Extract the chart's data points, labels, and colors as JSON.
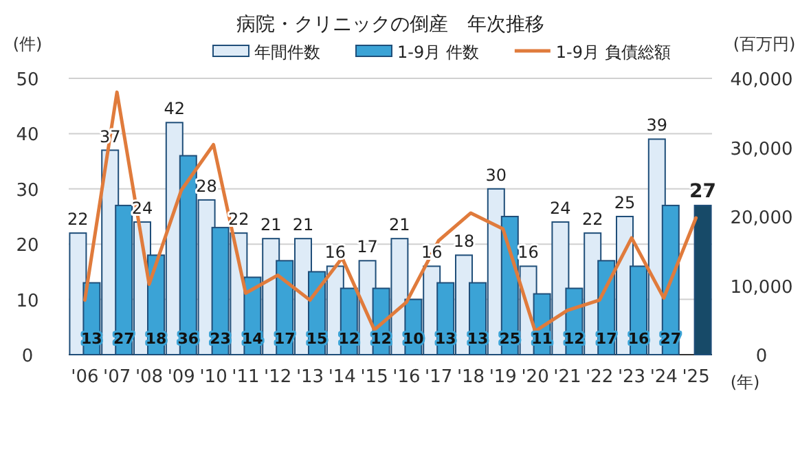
{
  "chart_data": {
    "type": "bar",
    "title": "病院・クリニックの倒産　年次推移",
    "categories": [
      "'06",
      "'07",
      "'08",
      "'09",
      "'10",
      "'11",
      "'12",
      "'13",
      "'14",
      "'15",
      "'16",
      "'17",
      "'18",
      "'19",
      "'20",
      "'21",
      "'22",
      "'23",
      "'24",
      "'25"
    ],
    "xlabel": "(年)",
    "ylabel": "(件)",
    "y2label": "(百万円)",
    "series": [
      {
        "name": "年間件数",
        "color": "#deebf7",
        "values": [
          22,
          37,
          24,
          42,
          28,
          22,
          21,
          21,
          16,
          17,
          21,
          16,
          18,
          30,
          16,
          24,
          22,
          25,
          39,
          null
        ],
        "value_labels": [
          "22",
          "37",
          "24",
          "42",
          "28",
          "22",
          "21",
          "21",
          "16",
          "17",
          "21",
          "16",
          "18",
          "30",
          "16",
          "24",
          "22",
          "25",
          "39",
          null
        ]
      },
      {
        "name": "1-9月  件数",
        "color": "#3ba3d6",
        "colors": [
          "#3ba3d6",
          "#3ba3d6",
          "#3ba3d6",
          "#3ba3d6",
          "#3ba3d6",
          "#3ba3d6",
          "#3ba3d6",
          "#3ba3d6",
          "#3ba3d6",
          "#3ba3d6",
          "#3ba3d6",
          "#3ba3d6",
          "#3ba3d6",
          "#3ba3d6",
          "#3ba3d6",
          "#3ba3d6",
          "#3ba3d6",
          "#3ba3d6",
          "#3ba3d6",
          "#174a68"
        ],
        "values": [
          13,
          27,
          18,
          36,
          23,
          14,
          17,
          15,
          12,
          12,
          10,
          13,
          13,
          25,
          11,
          12,
          17,
          16,
          27,
          27
        ],
        "value_labels": [
          "13",
          "27",
          "18",
          "36",
          "23",
          "14",
          "17",
          "15",
          "12",
          "12",
          "10",
          "13",
          "13",
          "25",
          "11",
          "12",
          "17",
          "16",
          "27",
          "27"
        ]
      },
      {
        "name": "1-9月  負債総額",
        "type": "line",
        "axis": "y2",
        "color": "#e07b3c",
        "values": [
          7900,
          38000,
          10200,
          23800,
          30400,
          8900,
          11500,
          7900,
          14000,
          3600,
          7600,
          16500,
          20500,
          18200,
          3400,
          6400,
          7900,
          16900,
          8200,
          19800
        ]
      }
    ],
    "ylim": [
      0,
      50
    ],
    "yticks": [
      0,
      10,
      20,
      30,
      40,
      50
    ],
    "y2lim": [
      0,
      40000
    ],
    "y2ticks": [
      {
        "value": 0,
        "label": "0"
      },
      {
        "value": 10000,
        "label": "10,000"
      },
      {
        "value": 20000,
        "label": "20,000"
      },
      {
        "value": 30000,
        "label": "30,000"
      },
      {
        "value": 40000,
        "label": "40,000"
      }
    ],
    "grid": "y",
    "legend": "top",
    "marker": "none",
    "line_style": "solid"
  }
}
